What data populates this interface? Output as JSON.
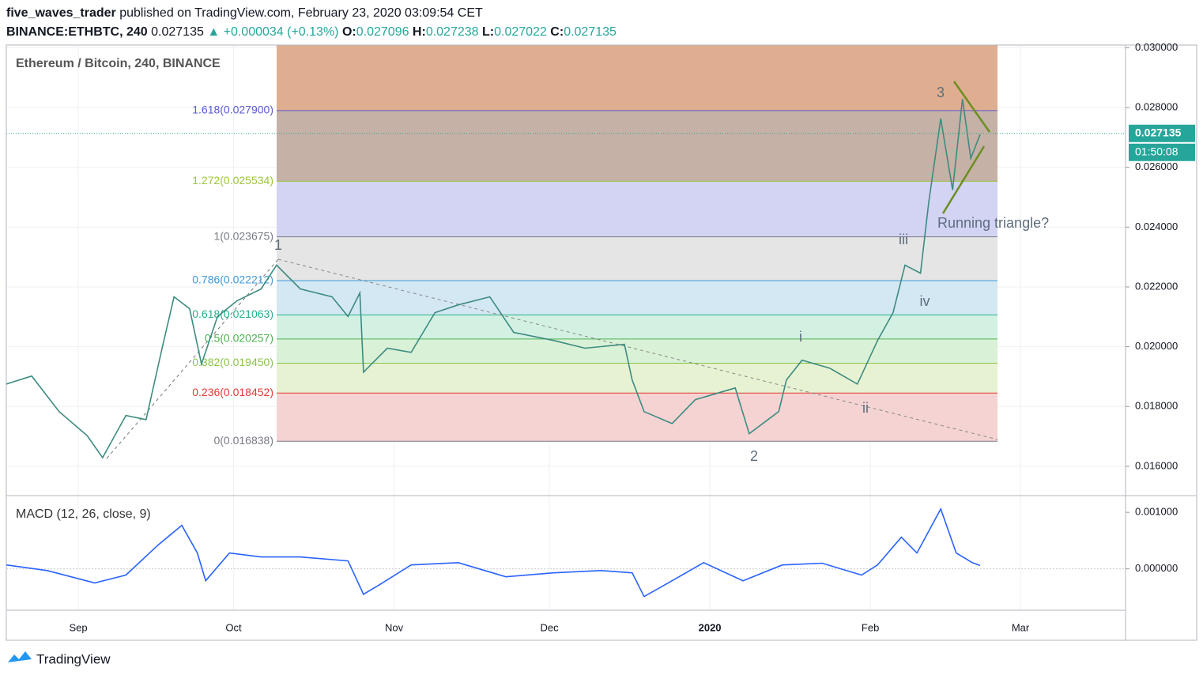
{
  "header": {
    "author": "five_waves_trader",
    "published": "published on TradingView.com, February 23, 2020 03:09:54 CET",
    "symbol": "BINANCE:ETHBTC, 240",
    "last": "0.027135",
    "change": "▲ +0.000034 (+0.13%)",
    "ohlc": [
      [
        "O:",
        "0.027096"
      ],
      [
        "H:",
        "0.027238"
      ],
      [
        "L:",
        "0.027022"
      ],
      [
        "C:",
        "0.027135"
      ]
    ]
  },
  "chart_data": [
    {
      "type": "line",
      "title": "Ethereum / Bitcoin, 240, BINANCE",
      "color": "#3d8b80",
      "x": [
        -13.9,
        -9.0,
        -3.7,
        1.7,
        4.7,
        9.2,
        13.1,
        16.2,
        18.5,
        21.5,
        23.8,
        26.9,
        30.7,
        35.3,
        38.3,
        42.9,
        49.0,
        52.1,
        54.4,
        55.1,
        59.7,
        64.3,
        68.9,
        73.4,
        79.5,
        84.1,
        91.8,
        97.9,
        105.5,
        107.0,
        109.3,
        114.7,
        119.2,
        126.9,
        129.6,
        135.3,
        136.8,
        139.8,
        145.2,
        150.5,
        154.4,
        157.4,
        159.7,
        162.7,
        164.3,
        166.6,
        168.9,
        170.8,
        172.4,
        174.2
      ],
      "values": [
        0.01875,
        0.01902,
        0.01783,
        0.01703,
        0.01629,
        0.0177,
        0.01756,
        0.01995,
        0.02167,
        0.02127,
        0.01942,
        0.02101,
        0.02154,
        0.02193,
        0.02273,
        0.02193,
        0.02167,
        0.02101,
        0.0218,
        0.01915,
        0.01995,
        0.01981,
        0.02114,
        0.0214,
        0.02167,
        0.02048,
        0.02021,
        0.01995,
        0.02008,
        0.01889,
        0.01783,
        0.01743,
        0.01823,
        0.01862,
        0.01709,
        0.01783,
        0.01889,
        0.01955,
        0.01928,
        0.01875,
        0.02021,
        0.02114,
        0.02273,
        0.02246,
        0.02485,
        0.02763,
        0.02524,
        0.02829,
        0.0263,
        0.0271
      ],
      "xlim": [
        -13.9,
        202.3
      ],
      "xticks": [
        {
          "value": 0,
          "label": "Sep"
        },
        {
          "value": 30,
          "label": "Oct"
        },
        {
          "value": 61,
          "label": "Nov"
        },
        {
          "value": 91,
          "label": "Dec"
        },
        {
          "value": 122,
          "label": "2020"
        },
        {
          "value": 153,
          "label": "Feb"
        },
        {
          "value": 182,
          "label": "Mar"
        }
      ],
      "ylim": [
        0.01502,
        0.03009
      ],
      "yticks": [
        {
          "value": 0.016,
          "label": "0.016000"
        },
        {
          "value": 0.018,
          "label": "0.018000"
        },
        {
          "value": 0.02,
          "label": "0.020000"
        },
        {
          "value": 0.022,
          "label": "0.022000"
        },
        {
          "value": 0.024,
          "label": "0.024000"
        },
        {
          "value": 0.026,
          "label": "0.026000"
        },
        {
          "value": 0.028,
          "label": "0.028000"
        },
        {
          "value": 0.03,
          "label": "0.030000"
        }
      ],
      "grid": true,
      "last_price": {
        "value": 0.027135,
        "label": "0.027135"
      },
      "countdown": "01:50:08",
      "fib_levels": [
        {
          "label": "0(0.016838)",
          "value": 0.016838,
          "color": "#787b86",
          "fill": "#f5d3d3"
        },
        {
          "label": "0.236(0.018452)",
          "value": 0.018452,
          "color": "#e53935",
          "fill": "#e7f2d3"
        },
        {
          "label": "0.382(0.019450)",
          "value": 0.01945,
          "color": "#8bc34a",
          "fill": "#d9f1d6"
        },
        {
          "label": "0.5(0.020257)",
          "value": 0.020257,
          "color": "#4caf50",
          "fill": "#d3f1e3"
        },
        {
          "label": "0.618(0.021063)",
          "value": 0.021063,
          "color": "#26b08e",
          "fill": "#d4e8f3"
        },
        {
          "label": "0.786(0.022212)",
          "value": 0.022212,
          "color": "#3d9ad9",
          "fill": "#e5e5e5"
        },
        {
          "label": "1(0.023675)",
          "value": 0.023675,
          "color": "#787b86",
          "fill": "#d3d3f4"
        },
        {
          "label": "1.272(0.025534)",
          "value": 0.025534,
          "color": "#9bc53d",
          "fill": "#c6b1a6"
        },
        {
          "label": "1.618(0.027900)",
          "value": 0.0279,
          "color": "#5a5ad0",
          "fill": "#dfae90"
        }
      ],
      "annotations": {
        "w1": "1",
        "w2": "2",
        "w3": "3",
        "wi": "i",
        "wii": "ii",
        "wiii": "iii",
        "wiv": "iv",
        "note": "Running triangle?"
      }
    },
    {
      "type": "line",
      "title": "MACD (12, 26, close, 9)",
      "color": "#2962ff",
      "x": [
        -13.9,
        -6.0,
        3.2,
        9.2,
        15.4,
        20.0,
        23.0,
        24.6,
        29.2,
        35.3,
        42.9,
        52.1,
        55.1,
        58.2,
        64.3,
        73.4,
        82.6,
        91.8,
        100.9,
        107.0,
        109.3,
        114.7,
        120.8,
        128.4,
        136.0,
        143.7,
        151.3,
        154.4,
        159.0,
        162.0,
        166.6,
        169.6,
        172.7,
        174.2
      ],
      "values": [
        7e-05,
        -3e-05,
        -0.00025,
        -0.00011,
        0.00042,
        0.00077,
        0.00028,
        -0.00021,
        0.00028,
        0.00021,
        0.00021,
        0.00014,
        -0.00045,
        -0.00028,
        7e-05,
        0.00011,
        -0.00014,
        -7e-05,
        -3e-05,
        -7e-05,
        -0.00049,
        -0.00021,
        0.00011,
        -0.00021,
        7e-05,
        0.0001,
        -0.00011,
        7e-05,
        0.00056,
        0.00028,
        0.00106,
        0.00028,
        0.00011,
        6e-05
      ],
      "ylim": [
        -0.000732,
        0.0012958
      ],
      "yticks": [
        {
          "value": 0,
          "label": "0.000000"
        },
        {
          "value": 0.001,
          "label": "0.001000"
        }
      ]
    }
  ],
  "footer": "TradingView"
}
